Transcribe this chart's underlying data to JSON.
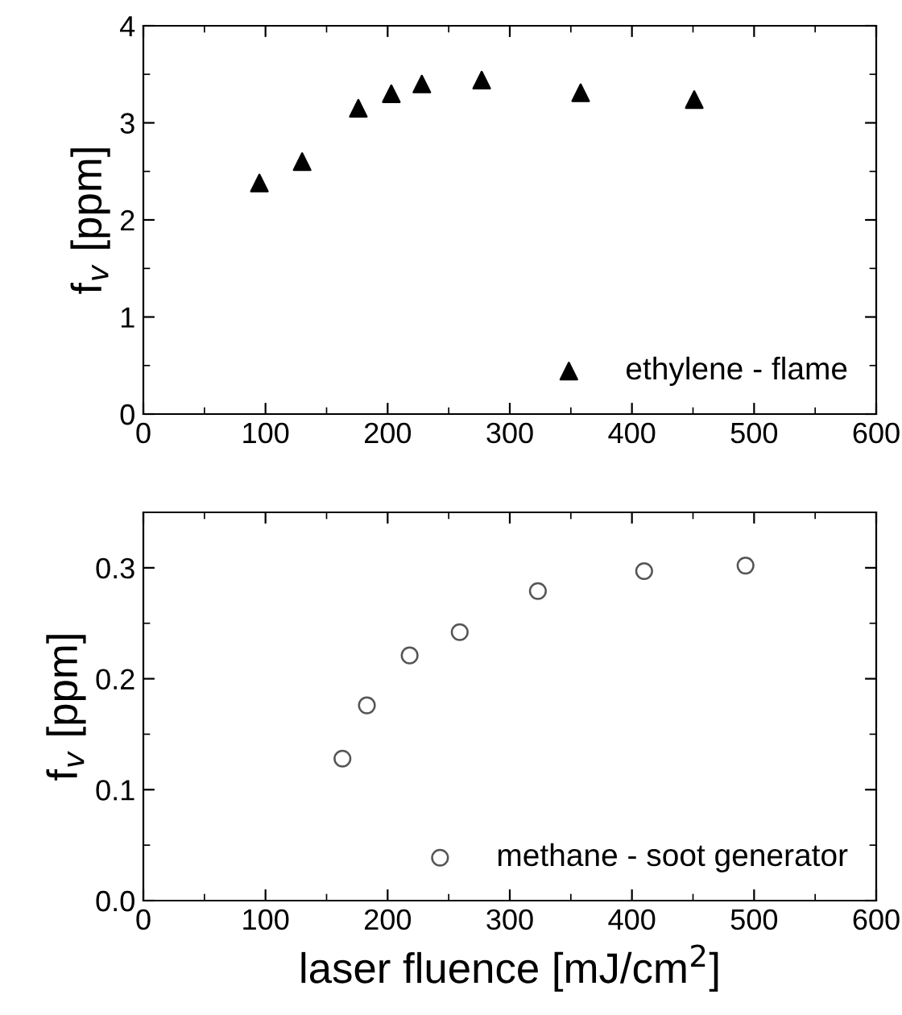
{
  "chart_data": [
    {
      "type": "scatter",
      "ylabel": "f$_{v}$ [ppm]",
      "xlim": [
        0,
        600
      ],
      "xticks": [
        0,
        100,
        200,
        300,
        400,
        500,
        600
      ],
      "ylim": [
        0,
        4
      ],
      "yticks": [
        0,
        1,
        2,
        3,
        4
      ],
      "marker": "triangle",
      "legend": "bottom right",
      "grid": false,
      "series": [
        {
          "name": "ethylene - flame",
          "color": "#000000",
          "x": [
            95,
            130,
            176,
            203,
            228,
            277,
            358,
            451
          ],
          "values": [
            2.38,
            2.6,
            3.15,
            3.3,
            3.4,
            3.44,
            3.31,
            3.24
          ]
        }
      ]
    },
    {
      "type": "scatter",
      "xlabel": "laser fluence [mJ/cm$^{2}$]",
      "ylabel": "f$_{v}$ [ppm]",
      "xlim": [
        0,
        600
      ],
      "xticks": [
        0,
        100,
        200,
        300,
        400,
        500,
        600
      ],
      "ylim": [
        0,
        0.35
      ],
      "yticks": [
        {
          "value": 0,
          "label": "0.0"
        },
        0.1,
        0.2,
        0.3
      ],
      "marker": "circle",
      "legend": "bottom right",
      "grid": false,
      "series": [
        {
          "name": "methane - soot generator",
          "color": "#555555",
          "x": [
            163,
            183,
            218,
            259,
            323,
            410,
            493
          ],
          "values": [
            0.128,
            0.176,
            0.221,
            0.242,
            0.279,
            0.297,
            0.302
          ]
        }
      ]
    }
  ]
}
